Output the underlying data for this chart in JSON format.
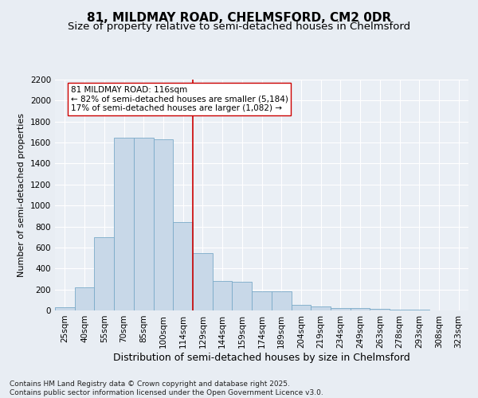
{
  "title1": "81, MILDMAY ROAD, CHELMSFORD, CM2 0DR",
  "title2": "Size of property relative to semi-detached houses in Chelmsford",
  "xlabel": "Distribution of semi-detached houses by size in Chelmsford",
  "ylabel": "Number of semi-detached properties",
  "categories": [
    "25sqm",
    "40sqm",
    "55sqm",
    "70sqm",
    "85sqm",
    "100sqm",
    "114sqm",
    "129sqm",
    "144sqm",
    "159sqm",
    "174sqm",
    "189sqm",
    "204sqm",
    "219sqm",
    "234sqm",
    "249sqm",
    "263sqm",
    "278sqm",
    "293sqm",
    "308sqm",
    "323sqm"
  ],
  "values": [
    30,
    220,
    700,
    1650,
    1650,
    1630,
    840,
    550,
    280,
    270,
    180,
    180,
    50,
    40,
    25,
    20,
    15,
    10,
    5,
    3,
    0
  ],
  "bar_color": "#c8d8e8",
  "bar_edge_color": "#7aaac8",
  "vline_color": "#cc0000",
  "annotation_line1": "81 MILDMAY ROAD: 116sqm",
  "annotation_line2": "← 82% of semi-detached houses are smaller (5,184)",
  "annotation_line3": "17% of semi-detached houses are larger (1,082) →",
  "annotation_box_color": "#ffffff",
  "annotation_box_edge": "#cc0000",
  "ylim": [
    0,
    2200
  ],
  "yticks": [
    0,
    200,
    400,
    600,
    800,
    1000,
    1200,
    1400,
    1600,
    1800,
    2000,
    2200
  ],
  "bg_color": "#e8edf3",
  "plot_bg_color": "#eaeff5",
  "grid_color": "#ffffff",
  "footer": "Contains HM Land Registry data © Crown copyright and database right 2025.\nContains public sector information licensed under the Open Government Licence v3.0.",
  "title1_fontsize": 11,
  "title2_fontsize": 9.5,
  "xlabel_fontsize": 9,
  "ylabel_fontsize": 8,
  "tick_fontsize": 7.5,
  "footer_fontsize": 6.5,
  "annot_fontsize": 7.5
}
